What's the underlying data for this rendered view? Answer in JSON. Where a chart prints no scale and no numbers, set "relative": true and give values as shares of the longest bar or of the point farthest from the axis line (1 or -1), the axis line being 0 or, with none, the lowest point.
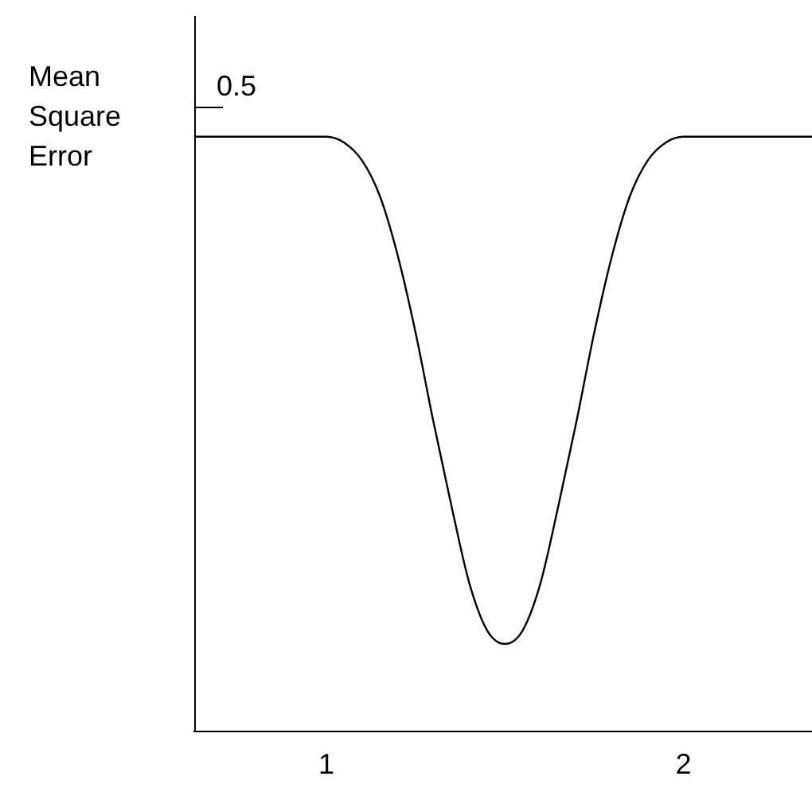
{
  "chart_data": {
    "type": "line",
    "ylabel": "Mean Square Error",
    "relative": true,
    "color": "#000000",
    "x": [
      0.63,
      0.8,
      1.0,
      1.05,
      1.1,
      1.15,
      1.2,
      1.25,
      1.3,
      1.35,
      1.4,
      1.45,
      1.5,
      1.55,
      1.6,
      1.65,
      1.7,
      1.75,
      1.8,
      1.85,
      1.9,
      1.95,
      2.0,
      2.2,
      2.36
    ],
    "values": [
      1,
      1,
      1,
      0.99,
      0.96,
      0.9,
      0.8,
      0.67,
      0.52,
      0.38,
      0.25,
      0.17,
      0.147,
      0.17,
      0.25,
      0.38,
      0.52,
      0.67,
      0.8,
      0.9,
      0.96,
      0.99,
      1,
      1,
      1
    ],
    "xlim": [
      0.63,
      2.36
    ],
    "xticks": [
      1,
      2
    ],
    "grid": false,
    "legend": false,
    "marker": "none",
    "annotations": [
      "0.5"
    ]
  }
}
